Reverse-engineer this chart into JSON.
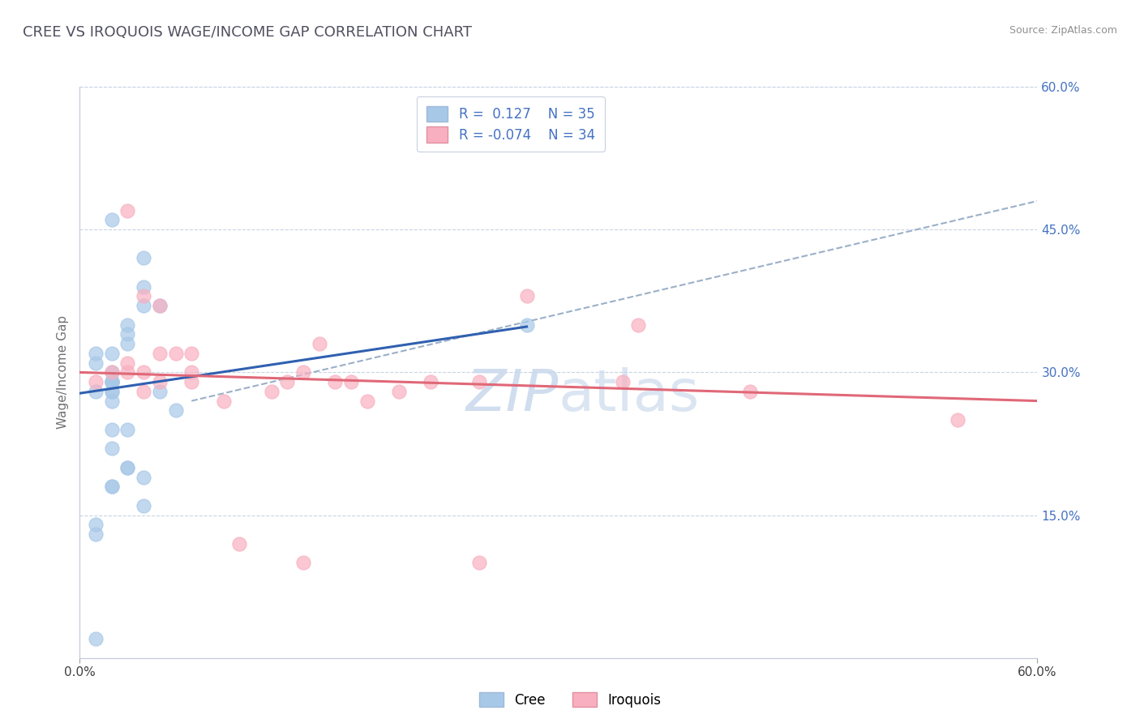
{
  "title": "CREE VS IROQUOIS WAGE/INCOME GAP CORRELATION CHART",
  "source": "Source: ZipAtlas.com",
  "ylabel": "Wage/Income Gap",
  "xlim": [
    0.0,
    0.6
  ],
  "ylim": [
    0.0,
    0.6
  ],
  "cree_R": "0.127",
  "cree_N": "35",
  "iroquois_R": "-0.074",
  "iroquois_N": "34",
  "cree_color": "#a8c8e8",
  "iroquois_color": "#f8b0c0",
  "cree_line_color": "#3060b0",
  "iroquois_line_color": "#e06878",
  "dashed_line_color": "#9ab0c8",
  "background_color": "#ffffff",
  "plot_bg_color": "#ffffff",
  "grid_color": "#c8d4e4",
  "title_color": "#505060",
  "source_color": "#909090",
  "right_axis_color": "#4472c4",
  "watermark_color": "#c8d8ec",
  "cree_x": [
    0.02,
    0.01,
    0.02,
    0.01,
    0.01,
    0.02,
    0.02,
    0.02,
    0.03,
    0.02,
    0.03,
    0.03,
    0.04,
    0.04,
    0.04,
    0.05,
    0.05,
    0.06,
    0.04,
    0.04,
    0.03,
    0.03,
    0.03,
    0.02,
    0.02,
    0.02,
    0.01,
    0.01,
    0.01,
    0.02,
    0.02,
    0.28,
    0.02,
    0.02,
    0.02
  ],
  "cree_y": [
    0.29,
    0.28,
    0.3,
    0.31,
    0.32,
    0.29,
    0.28,
    0.27,
    0.35,
    0.32,
    0.34,
    0.33,
    0.42,
    0.39,
    0.37,
    0.37,
    0.28,
    0.26,
    0.16,
    0.19,
    0.2,
    0.2,
    0.24,
    0.24,
    0.18,
    0.18,
    0.14,
    0.13,
    0.02,
    0.28,
    0.29,
    0.35,
    0.46,
    0.22,
    0.29
  ],
  "iroquois_x": [
    0.01,
    0.02,
    0.03,
    0.03,
    0.04,
    0.05,
    0.05,
    0.07,
    0.07,
    0.1,
    0.13,
    0.14,
    0.14,
    0.16,
    0.17,
    0.2,
    0.22,
    0.25,
    0.25,
    0.28,
    0.34,
    0.35,
    0.42,
    0.55,
    0.03,
    0.04,
    0.04,
    0.05,
    0.06,
    0.07,
    0.09,
    0.12,
    0.15,
    0.18
  ],
  "iroquois_y": [
    0.29,
    0.3,
    0.31,
    0.3,
    0.3,
    0.29,
    0.32,
    0.3,
    0.29,
    0.12,
    0.29,
    0.3,
    0.1,
    0.29,
    0.29,
    0.28,
    0.29,
    0.1,
    0.29,
    0.38,
    0.29,
    0.35,
    0.28,
    0.25,
    0.47,
    0.38,
    0.28,
    0.37,
    0.32,
    0.32,
    0.27,
    0.28,
    0.33,
    0.27
  ],
  "cree_line_x": [
    0.0,
    0.28
  ],
  "cree_line_y": [
    0.278,
    0.348
  ],
  "iroquois_line_x": [
    0.0,
    0.6
  ],
  "iroquois_line_y": [
    0.3,
    0.27
  ],
  "dashed_line_x": [
    0.07,
    0.6
  ],
  "dashed_line_y": [
    0.27,
    0.48
  ]
}
